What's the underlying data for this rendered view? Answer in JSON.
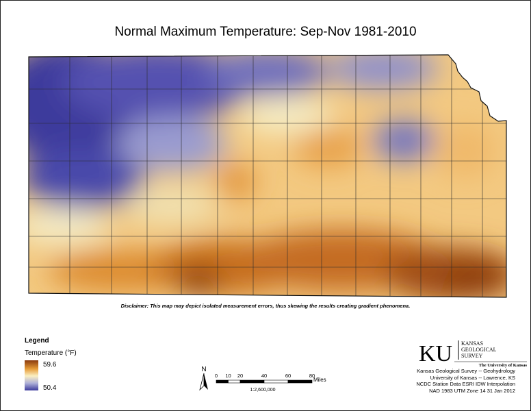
{
  "title": "Normal Maximum Temperature:  Sep-Nov 1981-2010",
  "disclaimer": "Disclaimer: This map may depict isolated measurement errors, thus skewing the results creating gradient phenomena.",
  "legend": {
    "title": "Legend",
    "subtitle": "Temperature (°F)",
    "high_label": "59.6",
    "low_label": "50.4",
    "high_value": 59.6,
    "low_value": 50.4,
    "ramp_colors": [
      "#8a3a0e",
      "#e59a36",
      "#fbf0c2",
      "#aeb0d8",
      "#3c3a9c"
    ]
  },
  "north_arrow": {
    "label": "N"
  },
  "scale_bar": {
    "ticks": [
      "0",
      "10",
      "20",
      "40",
      "60",
      "80"
    ],
    "tick_values": [
      0,
      10,
      20,
      40,
      60,
      80
    ],
    "unit": "Miles",
    "ratio": "1:2,600,000"
  },
  "credits": {
    "logo_letters": "KU",
    "logo_name_line1": "KANSAS",
    "logo_name_line2": "GEOLOGICAL",
    "logo_name_line3": "SURVEY",
    "logo_university": "The University of Kansas",
    "lines": [
      "Kansas Geological Survey -- Geohydrology",
      "University of Kansas -- Lawrence, KS",
      "NCDC Station Data  ESRI IDW Interpolation",
      "NAD 1983 UTM Zone 14  31 Jan 2012"
    ]
  },
  "colors": {
    "cold": "#3c3a9c",
    "cool": "#aeb0d8",
    "mid": "#fbf0c2",
    "warm": "#e59a36",
    "hot": "#8a3a0e"
  }
}
